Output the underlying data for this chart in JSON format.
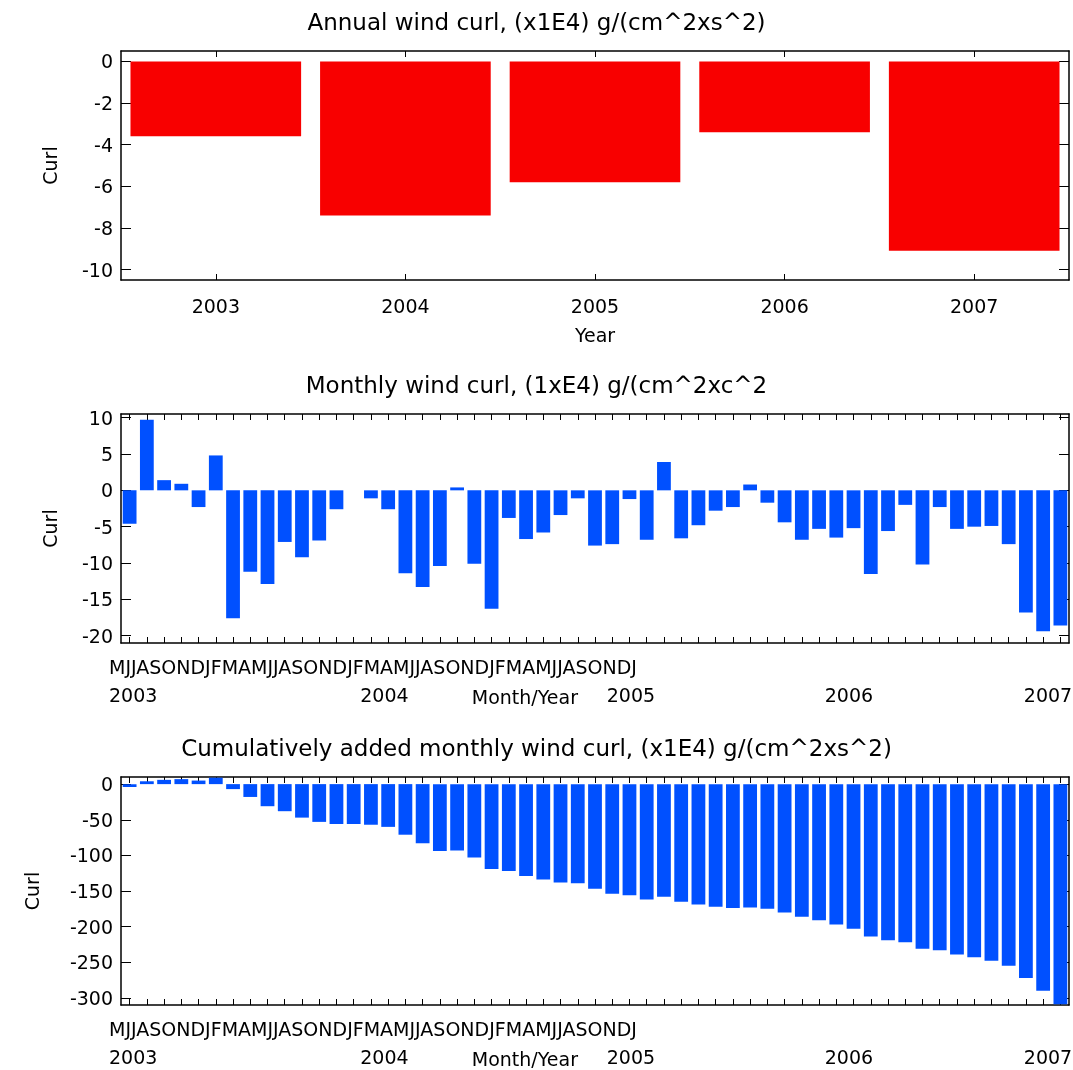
{
  "chart_data": [
    {
      "type": "bar",
      "title": "Annual wind curl, (x1E4) g/(cm^2xs^2)",
      "xlabel": "Year",
      "ylabel": "Curl",
      "categories": [
        "2003",
        "2004",
        "2005",
        "2006",
        "2007"
      ],
      "values": [
        -3.6,
        -7.4,
        -5.8,
        -3.4,
        -9.1
      ],
      "color": "#f80000",
      "ylim": [
        -10.5,
        0.5
      ],
      "yticks": [
        -10,
        -8,
        -6,
        -4,
        -2,
        0
      ]
    },
    {
      "type": "bar",
      "title": "Monthly wind curl, (1xE4) g/(cm^2xc^2",
      "xlabel": "Month/Year",
      "ylabel": "Curl",
      "categories": [
        null,
        null,
        null,
        null,
        null,
        null,
        null,
        null,
        null,
        null,
        null,
        null,
        null,
        null,
        null,
        null,
        null,
        null,
        null,
        null,
        null,
        null,
        null,
        null,
        null,
        null,
        null,
        null,
        null,
        null,
        null,
        null,
        null,
        null,
        null,
        null,
        null,
        null,
        null,
        null,
        null,
        null,
        null,
        null,
        null,
        null,
        null,
        null,
        null,
        null,
        null,
        null,
        null,
        null,
        null
      ],
      "values": [
        -4.6,
        9.7,
        1.4,
        0.9,
        -2.3,
        4.8,
        -17.6,
        -11.2,
        -12.9,
        -7.1,
        -9.2,
        -6.9,
        -2.6,
        null,
        -1.1,
        -2.6,
        -11.4,
        -13.3,
        -10.4,
        0.4,
        -10.1,
        -16.3,
        -3.8,
        -6.7,
        -5.8,
        -3.4,
        -1.1,
        -7.6,
        -7.4,
        -1.2,
        -6.8,
        3.9,
        -6.6,
        -4.8,
        -2.8,
        -2.3,
        0.8,
        -1.7,
        -4.4,
        -6.8,
        -5.3,
        -6.5,
        -5.2,
        -11.5,
        -5.6,
        -2.0,
        -10.2,
        -2.3,
        -5.3,
        -5.0,
        -4.9,
        -7.4,
        -16.8,
        -19.4,
        -18.6
      ],
      "color": "#0050ff",
      "ylim": [
        -21,
        10.5
      ],
      "yticks": [
        -20,
        -15,
        -10,
        -5,
        0,
        5,
        10
      ],
      "annotations": [
        "MJJASONDJFMAMJJASONDJFMAMJJASONDJFMAMJJASONDJ",
        "2003",
        "2004",
        "2005",
        "2006",
        "2007"
      ]
    },
    {
      "type": "bar",
      "title": "Cumulatively added monthly wind curl, (x1E4) g/(cm^2xs^2)",
      "xlabel": "Month/Year",
      "ylabel": "Curl",
      "categories": [
        null,
        null,
        null,
        null,
        null,
        null,
        null,
        null,
        null,
        null,
        null,
        null,
        null,
        null,
        null,
        null,
        null,
        null,
        null,
        null,
        null,
        null,
        null,
        null,
        null,
        null,
        null,
        null,
        null,
        null,
        null,
        null,
        null,
        null,
        null,
        null,
        null,
        null,
        null,
        null,
        null,
        null,
        null,
        null,
        null,
        null,
        null,
        null,
        null,
        null,
        null,
        null,
        null,
        null,
        null
      ],
      "values": [
        -4,
        4,
        6,
        7,
        5,
        9,
        -7,
        -18,
        -31,
        -38,
        -47,
        -53,
        -56,
        -56,
        -57,
        -60,
        -71,
        -83,
        -94,
        -93,
        -103,
        -119,
        -122,
        -129,
        -134,
        -138,
        -139,
        -147,
        -154,
        -156,
        -162,
        -158,
        -165,
        -169,
        -172,
        -174,
        -173,
        -175,
        -180,
        -186,
        -191,
        -197,
        -203,
        -214,
        -219,
        -222,
        -231,
        -233,
        -239,
        -243,
        -248,
        -255,
        -272,
        -290,
        -309
      ],
      "color": "#0050ff",
      "ylim": [
        -310,
        10
      ],
      "yticks": [
        -300,
        -250,
        -200,
        -150,
        -100,
        -50,
        0
      ],
      "annotations": [
        "MJJASONDJFMAMJJASONDJFMAMJJASONDJFMAMJJASONDJ",
        "2003",
        "2004",
        "2005",
        "2006",
        "2007"
      ]
    }
  ]
}
